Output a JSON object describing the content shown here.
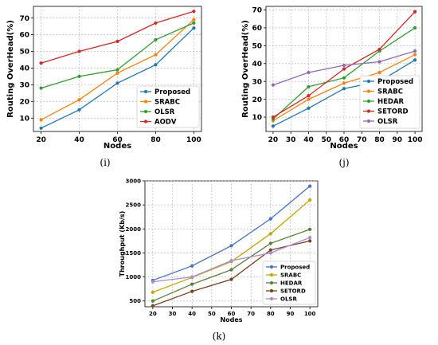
{
  "chart_data": [
    {
      "type": "line",
      "caption": "(i)",
      "xlabel": "Nodes",
      "ylabel": "Routing OverHead(%)",
      "x": [
        20,
        40,
        60,
        80,
        100
      ],
      "xticks": [
        20,
        40,
        60,
        80,
        100
      ],
      "xlim": [
        16,
        104
      ],
      "ylim": [
        2,
        77
      ],
      "yticks": [
        10,
        20,
        30,
        40,
        50,
        60,
        70
      ],
      "grid": true,
      "legend_position": "bottom-right",
      "series": [
        {
          "name": "Proposed",
          "color": "#1f77b4",
          "values": [
            4,
            15,
            31,
            42,
            64
          ]
        },
        {
          "name": "SRABC",
          "color": "#ff7f0e",
          "values": [
            9,
            21,
            37,
            48,
            69
          ]
        },
        {
          "name": "OLSR",
          "color": "#2ca02c",
          "values": [
            28,
            35,
            39,
            57,
            67
          ]
        },
        {
          "name": "AODV",
          "color": "#d62728",
          "values": [
            43,
            50,
            56,
            67,
            74
          ]
        }
      ]
    },
    {
      "type": "line",
      "caption": "(j)",
      "xlabel": "Nodes",
      "ylabel": "Routing OverHead(%)",
      "x": [
        20,
        40,
        60,
        80,
        100
      ],
      "xticks": [
        20,
        30,
        40,
        50,
        60,
        70,
        80,
        90,
        100
      ],
      "xlim": [
        16,
        104
      ],
      "ylim": [
        2,
        72
      ],
      "yticks": [
        10,
        20,
        30,
        40,
        50,
        60,
        70
      ],
      "grid": true,
      "legend_position": "bottom-right",
      "series": [
        {
          "name": "Proposed",
          "color": "#1f77b4",
          "values": [
            5,
            15,
            26,
            30,
            42
          ]
        },
        {
          "name": "SRABC",
          "color": "#ff7f0e",
          "values": [
            8,
            20,
            29,
            35,
            45
          ]
        },
        {
          "name": "HEDAR",
          "color": "#2ca02c",
          "values": [
            9,
            27,
            32,
            47,
            60
          ]
        },
        {
          "name": "SETORD",
          "color": "#d62728",
          "values": [
            10,
            22,
            37,
            48,
            69
          ]
        },
        {
          "name": "OLSR",
          "color": "#9467bd",
          "values": [
            28,
            35,
            39,
            41,
            47
          ]
        }
      ]
    },
    {
      "type": "line",
      "caption": "(k)",
      "xlabel": "Nodes",
      "ylabel": "Throughput (Kb/s)",
      "x": [
        20,
        40,
        60,
        80,
        100
      ],
      "xticks": [
        20,
        30,
        40,
        50,
        60,
        70,
        80,
        90,
        100
      ],
      "xlim": [
        16,
        104
      ],
      "ylim": [
        380,
        3000
      ],
      "yticks": [
        500,
        1000,
        1500,
        2000,
        2500,
        3000
      ],
      "grid": true,
      "legend_position": "bottom-right",
      "series": [
        {
          "name": "Proposed",
          "color": "#4472c4",
          "values": [
            930,
            1230,
            1650,
            2210,
            2890
          ]
        },
        {
          "name": "SRABC",
          "color": "#c9a400",
          "values": [
            680,
            990,
            1320,
            1900,
            2600
          ]
        },
        {
          "name": "HEDAR",
          "color": "#548235",
          "values": [
            500,
            850,
            1150,
            1700,
            1990
          ]
        },
        {
          "name": "SETORD",
          "color": "#7b3f1e",
          "values": [
            400,
            700,
            950,
            1560,
            1750
          ]
        },
        {
          "name": "OLSR",
          "color": "#a98bd6",
          "values": [
            900,
            1000,
            1340,
            1500,
            1820
          ]
        }
      ]
    }
  ]
}
